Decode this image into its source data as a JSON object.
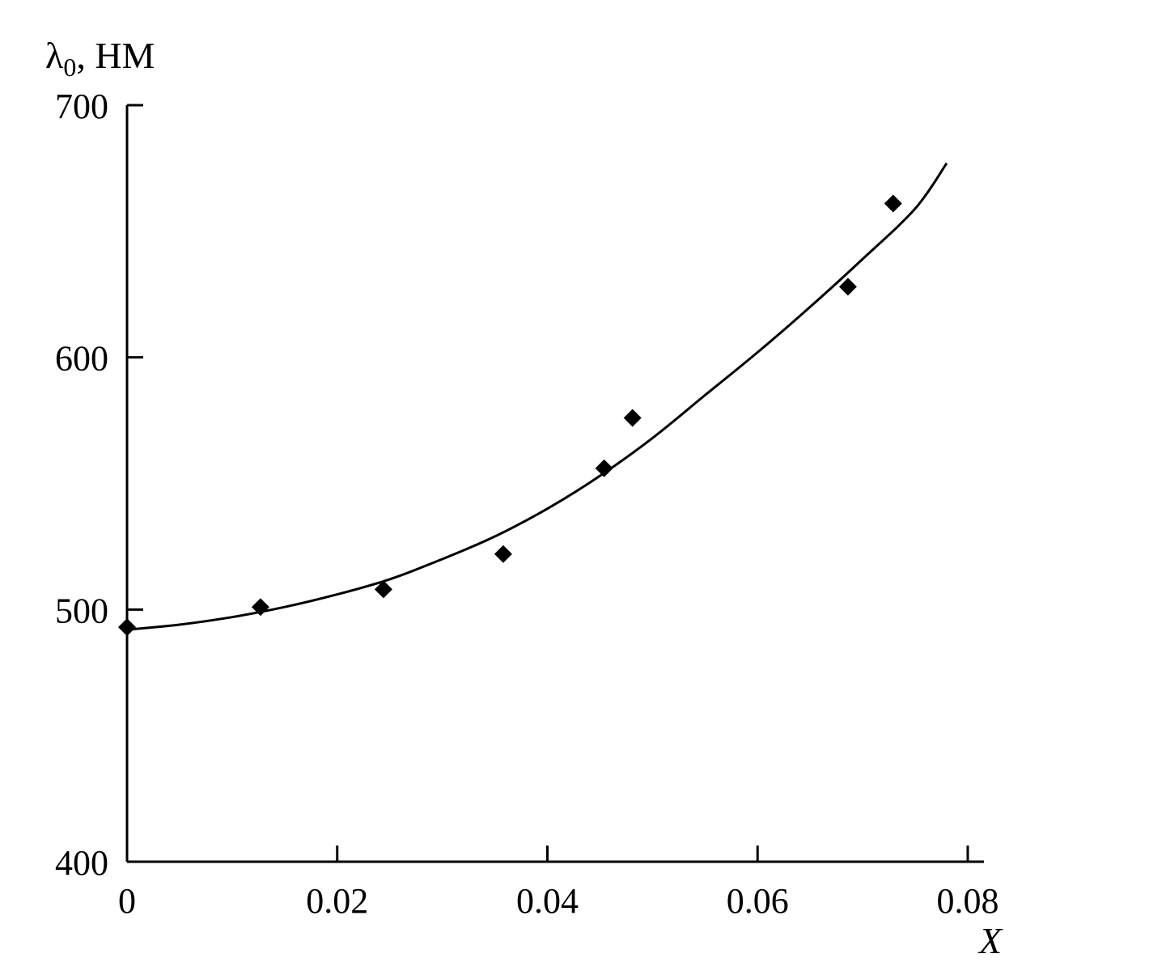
{
  "chart_data": {
    "type": "scatter",
    "title": "",
    "xlabel": "X",
    "ylabel": "λ0, НМ",
    "ylabel_main": "λ",
    "ylabel_sub": "0",
    "ylabel_unit": ", НМ",
    "xlim": [
      0,
      0.08
    ],
    "ylim": [
      400,
      700
    ],
    "x_ticks": [
      0,
      0.02,
      0.04,
      0.06,
      0.08
    ],
    "x_tick_labels": [
      "0",
      "0.02",
      "0.04",
      "0.06",
      "0.08"
    ],
    "y_ticks": [
      400,
      500,
      600,
      700
    ],
    "y_tick_labels": [
      "400",
      "500",
      "600",
      "700"
    ],
    "grid": false,
    "legend": "none",
    "series": [
      {
        "marker": "diamond",
        "x": [
          0.0,
          0.0127,
          0.0244,
          0.0358,
          0.0454,
          0.0481,
          0.0686,
          0.0729
        ],
        "y": [
          493,
          501,
          508,
          522,
          556,
          576,
          628,
          661
        ]
      }
    ],
    "fit_curve": {
      "x": [
        0.0,
        0.005,
        0.01,
        0.015,
        0.02,
        0.025,
        0.03,
        0.035,
        0.04,
        0.045,
        0.05,
        0.055,
        0.06,
        0.065,
        0.07,
        0.075,
        0.078
      ],
      "y": [
        492,
        494,
        497,
        501,
        506,
        512,
        520,
        529,
        540,
        553,
        568,
        585,
        602,
        620,
        639,
        659,
        677
      ]
    }
  }
}
